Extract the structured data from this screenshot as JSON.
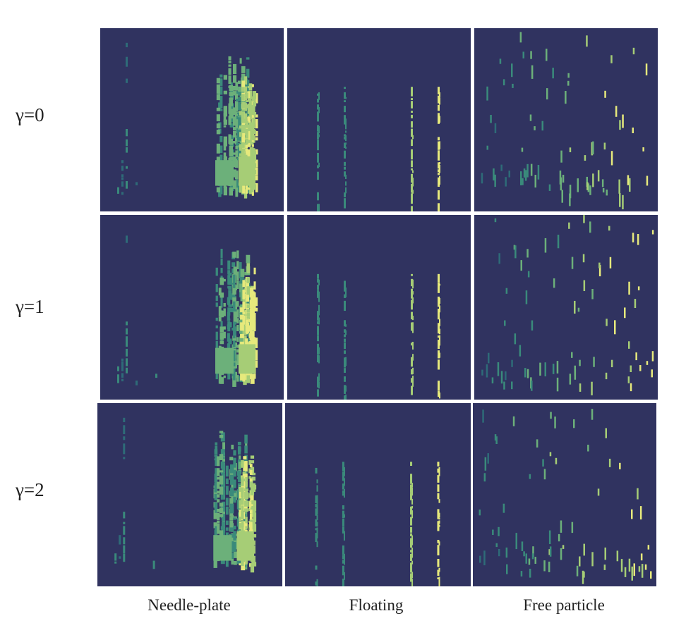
{
  "rows": [
    "γ=0",
    "γ=1",
    "γ=2"
  ],
  "columns": [
    "Needle-plate",
    "Floating",
    "Free particle"
  ],
  "colors": {
    "background": "#303360",
    "c1": "#2e6b78",
    "c2": "#3a8a7b",
    "c3": "#6cb07a",
    "c4": "#a6cd76",
    "c5": "#e6e97c"
  },
  "chart_data": {
    "type": "heatmap",
    "layout": "3x3 grid",
    "row_labels": [
      "γ=0",
      "γ=1",
      "γ=2"
    ],
    "column_labels": [
      "Needle-plate",
      "Floating",
      "Free particle"
    ],
    "colormap": "viridis (sparse patterns on dark background)",
    "axes": "none"
  }
}
